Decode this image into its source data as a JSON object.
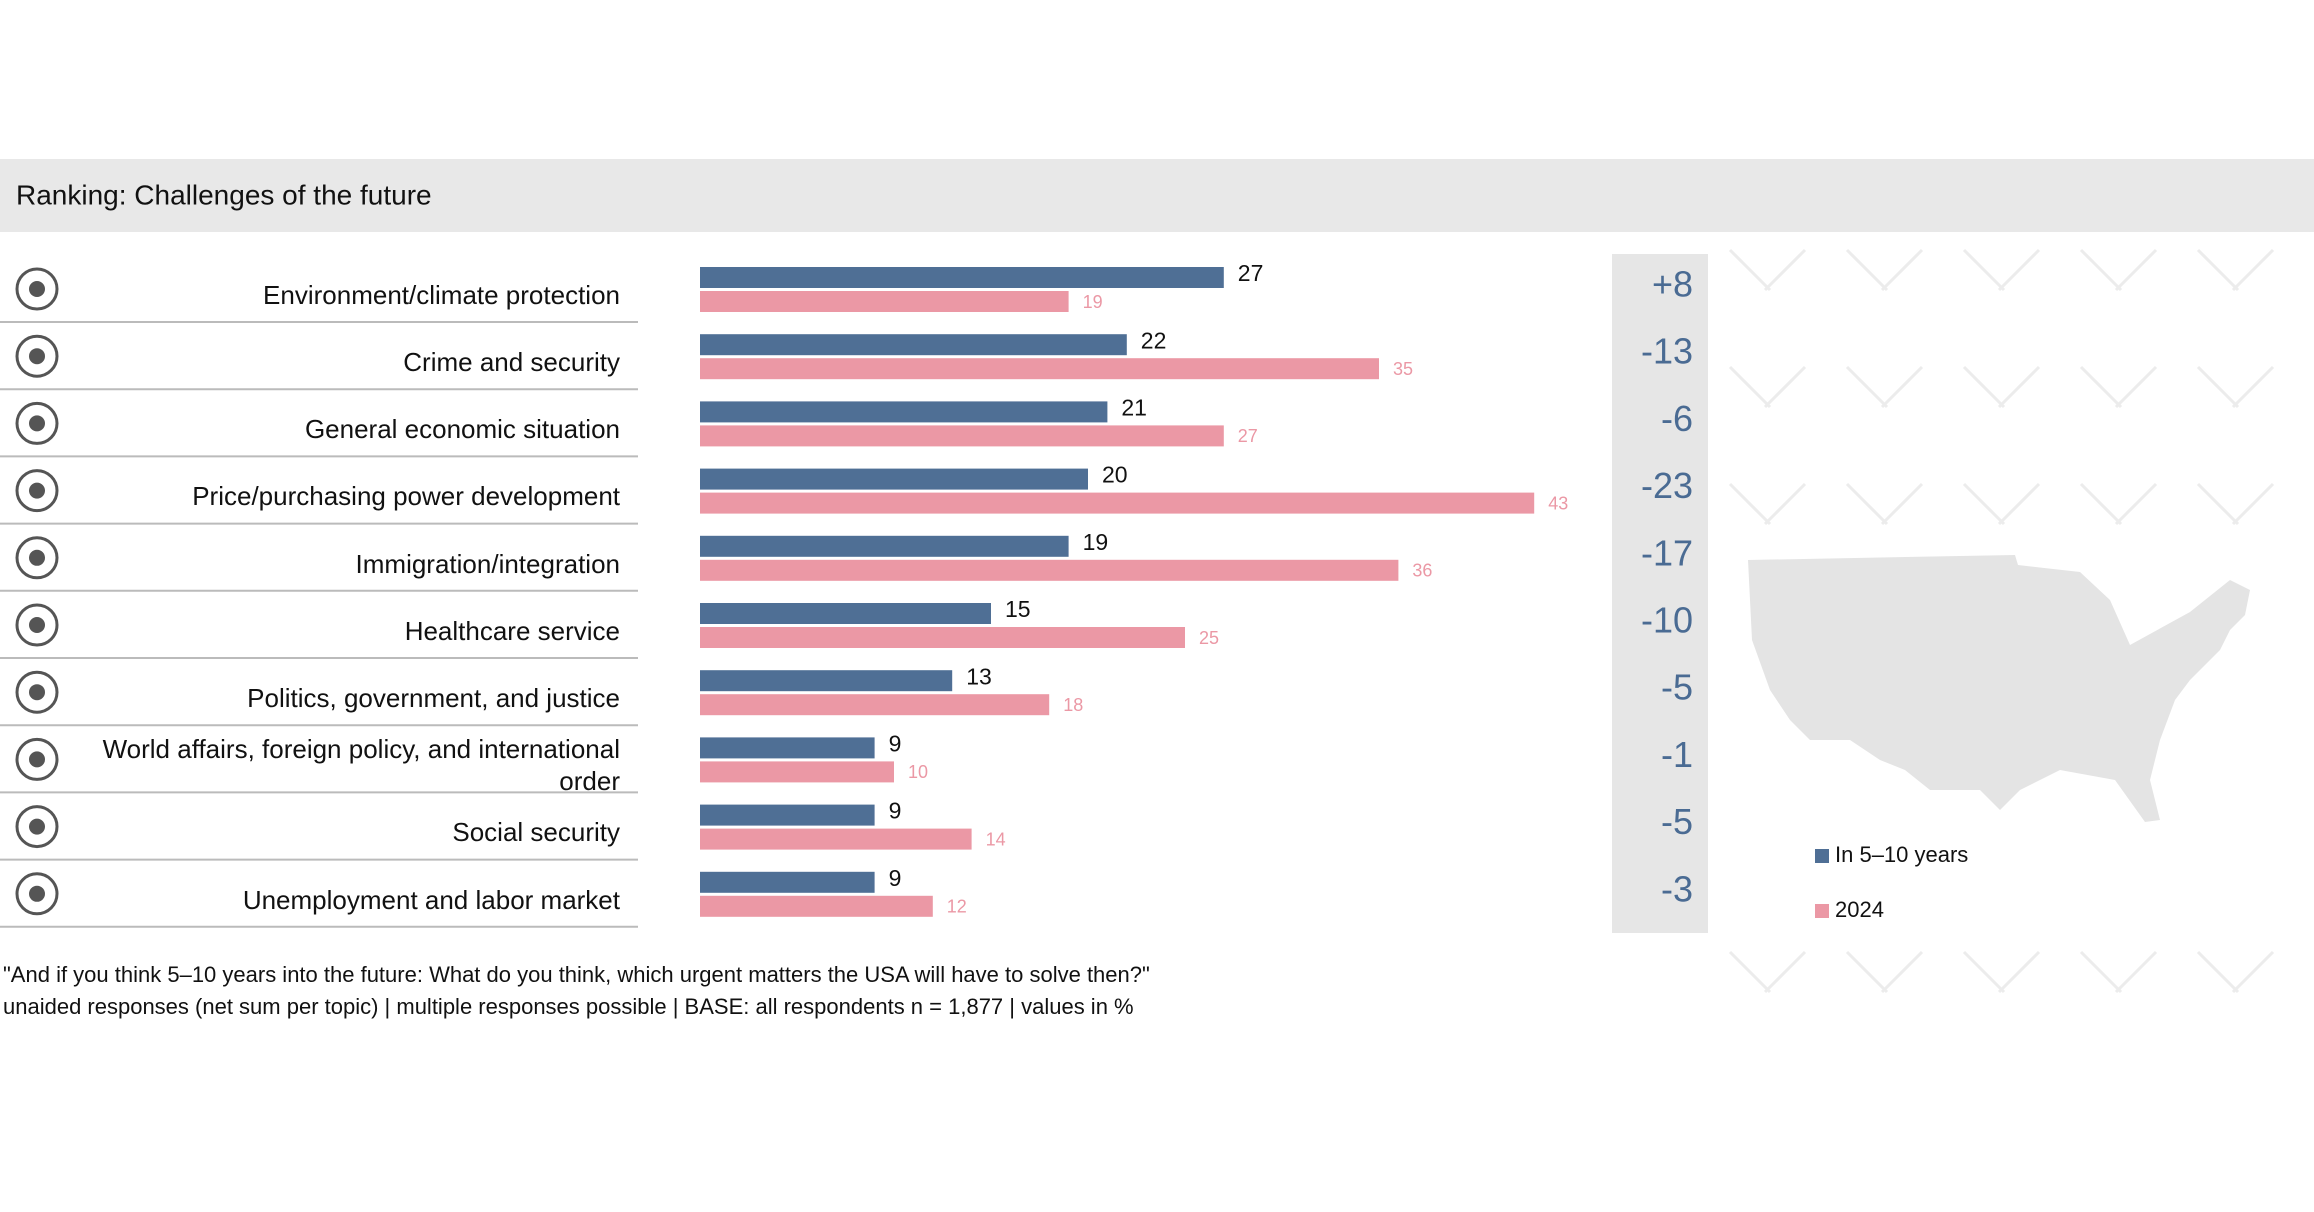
{
  "chart_data": {
    "type": "bar",
    "orientation": "horizontal",
    "title": "Ranking: Challenges of the future",
    "categories": [
      "Environment/climate protection",
      "Crime and security",
      "General economic situation",
      "Price/purchasing power development",
      "Immigration/integration",
      "Healthcare service",
      "Politics, government, and justice",
      "World affairs, foreign policy, and international order",
      "Social security",
      "Unemployment and labor market"
    ],
    "series": [
      {
        "name": "In 5–10 years",
        "color": "#4f6f95",
        "values": [
          27,
          22,
          21,
          20,
          19,
          15,
          13,
          9,
          9,
          9
        ]
      },
      {
        "name": "2024",
        "color": "#eb98a5",
        "values": [
          19,
          35,
          27,
          43,
          36,
          25,
          18,
          10,
          14,
          12
        ]
      }
    ],
    "difference": {
      "color": "#4a6b93",
      "values": [
        8,
        -13,
        -6,
        -23,
        -17,
        -10,
        -5,
        -1,
        -5,
        -3
      ],
      "value_labels": [
        "+8",
        "-13",
        "-6",
        "-23",
        "-17",
        "-10",
        "-5",
        "-1",
        "-5",
        "-3"
      ]
    },
    "notes": [
      "\"And if you think 5–10 years into the future: What do you think, which urgent matters the USA will have to solve then?\"",
      "unaided responses (net sum per topic) | multiple responses possible | BASE: all respondents n = 1,877 | values in %"
    ]
  }
}
